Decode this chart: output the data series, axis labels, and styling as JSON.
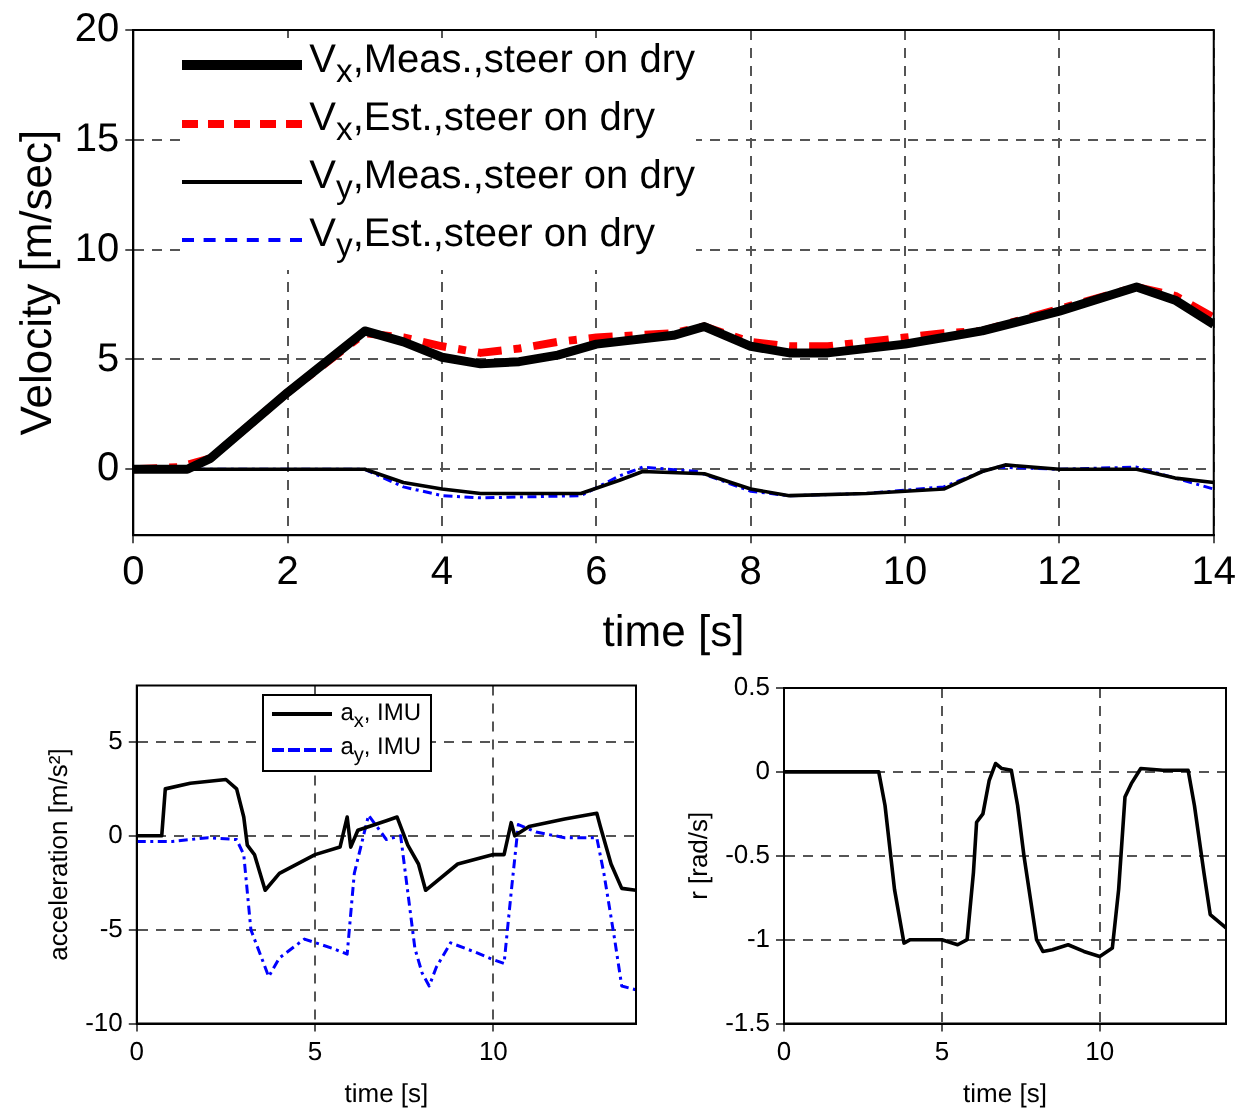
{
  "chart_data": [
    {
      "type": "line",
      "xlabel": "time [s]",
      "ylabel": "Velocity [m/sec]",
      "xlim": [
        0,
        14
      ],
      "xticks": [
        0,
        2,
        4,
        6,
        8,
        10,
        12,
        14
      ],
      "ylim": [
        -3,
        20
      ],
      "yticks": [
        0,
        5,
        10,
        15,
        20
      ],
      "grid": true,
      "legend": "top left",
      "series": [
        {
          "name": "V$_{x}$,Meas.,steer on dry",
          "color": "#000000",
          "line_style": "solid",
          "x": [
            0,
            0.7,
            1,
            2,
            3,
            3.5,
            4,
            4.5,
            5,
            5.5,
            6,
            7,
            7.4,
            8,
            8.5,
            9,
            10,
            10.5,
            11,
            12,
            13,
            13.5,
            14
          ],
          "values": [
            0,
            0,
            0.5,
            3.5,
            6.3,
            5.8,
            5.1,
            4.8,
            4.9,
            5.2,
            5.7,
            6.1,
            6.5,
            5.6,
            5.3,
            5.3,
            5.7,
            6,
            6.3,
            7.2,
            8.3,
            7.7,
            6.6
          ]
        },
        {
          "name": "V$_{x}$,Est.,steer on dry",
          "color": "#ff0000",
          "line_style": "dashed",
          "x": [
            0,
            0.6,
            1,
            2,
            3,
            3.5,
            4,
            4.5,
            5,
            5.5,
            6,
            7,
            7.4,
            8,
            8.5,
            9,
            10,
            10.5,
            11,
            12,
            13,
            13.5,
            14
          ],
          "values": [
            0,
            0.1,
            0.5,
            3.5,
            6.2,
            6,
            5.6,
            5.3,
            5.5,
            5.8,
            6,
            6.2,
            6.5,
            5.8,
            5.6,
            5.6,
            6,
            6.2,
            6.3,
            7.3,
            8.3,
            7.9,
            6.9
          ]
        },
        {
          "name": "V$_{y}$,Meas.,steer on dry",
          "color": "#000000",
          "line_style": "solid",
          "x": [
            0,
            3,
            3.5,
            4,
            4.5,
            5.8,
            6.3,
            6.6,
            7.4,
            8,
            8.5,
            9.5,
            10.5,
            11,
            11.3,
            12,
            13,
            13.5,
            14
          ],
          "values": [
            0,
            0,
            -0.6,
            -0.9,
            -1.1,
            -1.1,
            -0.5,
            -0.1,
            -0.2,
            -0.9,
            -1.2,
            -1.1,
            -0.9,
            -0.1,
            0.2,
            0,
            0,
            -0.4,
            -0.6
          ]
        },
        {
          "name": "V$_{y}$,Est.,steer on dry",
          "color": "#0000ff",
          "line_style": "dashed",
          "x": [
            0,
            3,
            3.5,
            4,
            4.5,
            5.8,
            6.3,
            6.6,
            7.3,
            8,
            8.5,
            9.5,
            10.5,
            11,
            11.2,
            12,
            13,
            13.5,
            14
          ],
          "values": [
            0,
            0,
            -0.8,
            -1.2,
            -1.3,
            -1.2,
            -0.3,
            0.1,
            -0.1,
            -1,
            -1.2,
            -1.1,
            -0.8,
            -0.1,
            0.1,
            0,
            0.1,
            -0.4,
            -0.9
          ]
        }
      ]
    },
    {
      "type": "line",
      "xlabel": "time [s]",
      "ylabel": "acceleration [m/s²]",
      "xlim": [
        0,
        14
      ],
      "xticks": [
        0,
        5,
        10
      ],
      "ylim": [
        -10,
        8
      ],
      "yticks": [
        -10,
        -5,
        0,
        5
      ],
      "grid": true,
      "legend": "top",
      "series": [
        {
          "name": "a$_{x}$, IMU",
          "color": "#000000",
          "line_style": "solid",
          "x": [
            0,
            0.7,
            0.8,
            1.5,
            2.5,
            2.8,
            3,
            3.1,
            3.3,
            3.6,
            4,
            5,
            5.7,
            5.9,
            6,
            6.2,
            7,
            7.3,
            7.6,
            7.9,
            8.1,
            9,
            10,
            10.3,
            10.5,
            10.6,
            11,
            12,
            12.9,
            13,
            13.3,
            13.6,
            14
          ],
          "values": [
            0,
            0,
            2.5,
            2.8,
            3,
            2.5,
            1,
            -0.5,
            -1,
            -2.9,
            -2,
            -1,
            -0.6,
            1,
            -0.6,
            0.3,
            0.8,
            1,
            -0.5,
            -1.5,
            -2.9,
            -1.5,
            -1,
            -1,
            0.7,
            0,
            0.5,
            0.9,
            1.2,
            0.5,
            -1.5,
            -2.8,
            -2.9
          ]
        },
        {
          "name": "a$_{y}$, IMU",
          "color": "#0000ff",
          "line_style": "dashed",
          "x": [
            0,
            1,
            2,
            2.8,
            3,
            3.2,
            3.5,
            3.7,
            4,
            4.7,
            5.5,
            5.9,
            6.1,
            6.5,
            7,
            7.4,
            7.6,
            7.8,
            8,
            8.2,
            8.4,
            8.8,
            9.5,
            10,
            10.3,
            10.5,
            10.7,
            11.2,
            12,
            12.9,
            13.1,
            13.4,
            13.6,
            14
          ],
          "values": [
            -0.3,
            -0.3,
            -0.1,
            -0.2,
            -1,
            -5,
            -6.5,
            -7.5,
            -6.5,
            -5.5,
            -6,
            -6.3,
            -2,
            1.1,
            -0.2,
            0,
            -3,
            -6,
            -7.3,
            -8,
            -7,
            -5.7,
            -6.2,
            -6.6,
            -6.8,
            -3,
            0.6,
            0.2,
            -0.1,
            -0.1,
            -2,
            -5.5,
            -8,
            -8.2
          ]
        }
      ]
    },
    {
      "type": "line",
      "xlabel": "time [s]",
      "ylabel": "r [rad/s]",
      "xlim": [
        0,
        14
      ],
      "xticks": [
        0,
        5,
        10
      ],
      "ylim": [
        -1.5,
        0.5
      ],
      "yticks": [
        -1.5,
        -1,
        -0.5,
        0,
        0.5
      ],
      "grid": true,
      "series": [
        {
          "color": "#000000",
          "line_style": "solid",
          "x": [
            0,
            3,
            3.2,
            3.5,
            3.8,
            4,
            5,
            5.5,
            5.8,
            6,
            6.1,
            6.3,
            6.5,
            6.7,
            6.9,
            7.2,
            7.4,
            7.6,
            8,
            8.2,
            8.5,
            9,
            9.5,
            10,
            10.4,
            10.6,
            10.8,
            11,
            11.3,
            12,
            12.8,
            13,
            13.3,
            13.5,
            14
          ],
          "values": [
            0,
            0,
            -0.2,
            -0.7,
            -1.02,
            -1,
            -1,
            -1.03,
            -1,
            -0.6,
            -0.3,
            -0.25,
            -0.05,
            0.05,
            0.02,
            0.01,
            -0.2,
            -0.5,
            -1,
            -1.07,
            -1.06,
            -1.03,
            -1.07,
            -1.1,
            -1.05,
            -0.7,
            -0.15,
            -0.07,
            0.02,
            0.01,
            0.01,
            -0.2,
            -0.6,
            -0.85,
            -0.93
          ]
        }
      ]
    }
  ]
}
